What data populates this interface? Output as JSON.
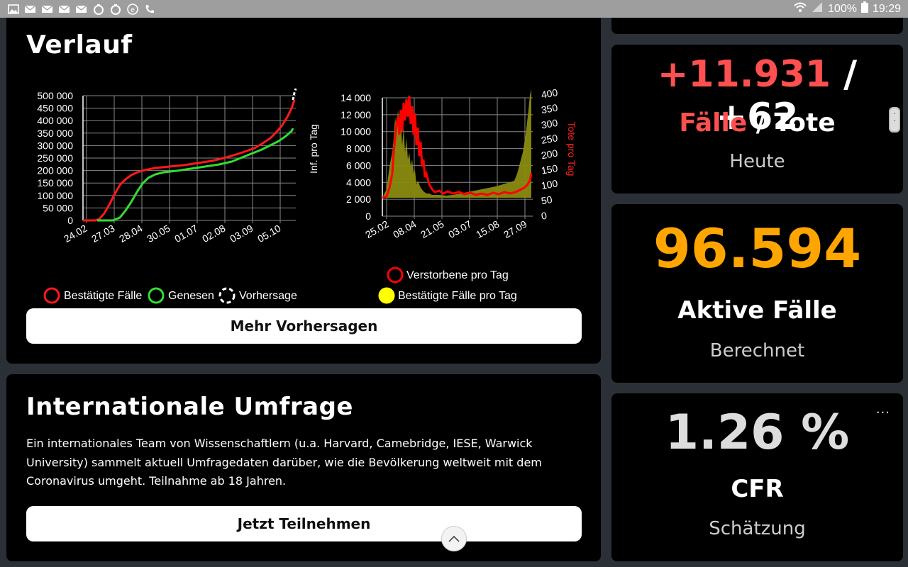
{
  "status_bar": {
    "battery": "100%",
    "time": "19:29",
    "left_icons": [
      "image-icon",
      "mail-icon",
      "mail-icon",
      "mail-icon",
      "mail-icon",
      "app-icon",
      "app-icon",
      "e-icon",
      "phone-icon"
    ]
  },
  "verlauf": {
    "title": "Verlauf",
    "button_label": "Mehr Vorhersagen",
    "left_chart": {
      "y_ticks": [
        "500 000",
        "450 000",
        "400 000",
        "350 000",
        "300 000",
        "250 000",
        "200 000",
        "150 000",
        "100 000",
        "50 000",
        "0"
      ],
      "x_ticks": [
        "24.02",
        "27.03",
        "28.04",
        "30.05",
        "01.07",
        "02.08",
        "03.09",
        "05.10"
      ],
      "legend": [
        "Bestätigte Fälle",
        "Genesen",
        "Vorhersage"
      ],
      "colors": {
        "confirmed": "#ff1a1a",
        "recovered": "#33dd33",
        "forecast": "#ffffff"
      }
    },
    "right_chart": {
      "y_left_label": "Inf. pro Tag",
      "y_right_label": "Tote pro Tag",
      "y_left_ticks": [
        "14 000",
        "12 000",
        "10 000",
        "8 000",
        "6 000",
        "4 000",
        "2 000",
        "0"
      ],
      "y_right_ticks": [
        "400",
        "350",
        "300",
        "250",
        "200",
        "150",
        "100",
        "50",
        "0"
      ],
      "x_ticks": [
        "25.02",
        "08.04",
        "21.05",
        "03.07",
        "15.08",
        "27.09"
      ],
      "legend": [
        "Verstorbene pro Tag",
        "Bestätigte Fälle pro Tag"
      ],
      "colors": {
        "deaths": "#ff0000",
        "cases": "#8a8a10",
        "legend_cases": "#ffff00"
      }
    }
  },
  "umfrage": {
    "title": "Internationale Umfrage",
    "text": "Ein internationales Team von Wissenschaftlern (u.a. Harvard, Camebridge, IESE, Warwick University) sammelt aktuell Umfragedaten darüber, wie die Bevölkerung weltweit mit dem Coronavirus umgeht. Teilnahme ab 18 Jahren.",
    "button_label": "Jetzt Teilnehmen"
  },
  "heute": {
    "cases": "+11.931",
    "slash": "/",
    "deaths": "+62",
    "label_cases": "Fälle",
    "label_slash": "/",
    "label_deaths": "Tote",
    "caption": "Heute",
    "colors": {
      "cases": "#ff5050",
      "deaths": "#ffffff"
    }
  },
  "aktive": {
    "value": "96.594",
    "label": "Aktive Fälle",
    "caption": "Berechnet",
    "color": "#ffa500"
  },
  "cfr": {
    "value": "1.26 %",
    "label": "CFR",
    "caption": "Schätzung",
    "more": "...",
    "color": "#dddddd"
  }
}
